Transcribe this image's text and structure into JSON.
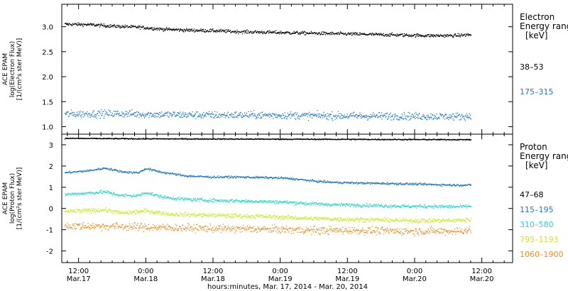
{
  "chart_data": [
    {
      "type": "scatter",
      "panel": "electron",
      "ylabel": [
        "ACE EPAM",
        "log(Electron Flux)",
        "[1/(cm²s ster MeV)]"
      ],
      "ylim": [
        0.85,
        3.45
      ],
      "yticks": [
        1.0,
        1.5,
        2.0,
        2.5,
        3.0
      ],
      "ytick_labels": [
        "1.0",
        "1.5",
        "2.0",
        "2.5",
        "3.0"
      ],
      "legend": {
        "title": [
          "Electron",
          "Energy ranges",
          "[keV]"
        ],
        "entries": [
          {
            "label": "38–53",
            "color": "#000000"
          },
          {
            "label": "175–315",
            "color": "#1f78c8"
          }
        ]
      },
      "series": [
        {
          "name": "38–53",
          "color": "#000000",
          "scatter": 0.04,
          "points": [
            [
              0,
              3.06
            ],
            [
              6,
              3.05
            ],
            [
              12,
              3.02
            ],
            [
              18,
              3.0
            ],
            [
              24,
              2.96
            ],
            [
              30,
              2.94
            ],
            [
              36,
              2.93
            ],
            [
              42,
              2.91
            ],
            [
              48,
              2.9
            ],
            [
              54,
              2.89
            ],
            [
              60,
              2.88
            ],
            [
              66,
              2.87
            ],
            [
              72,
              2.86
            ],
            [
              78,
              2.85
            ],
            [
              84,
              2.84
            ],
            [
              90,
              2.83
            ],
            [
              96,
              2.83
            ],
            [
              100,
              2.85
            ]
          ]
        },
        {
          "name": "175–315",
          "color": "#1f78c8",
          "scatter": 0.09,
          "points": [
            [
              0,
              1.26
            ],
            [
              12,
              1.27
            ],
            [
              24,
              1.25
            ],
            [
              36,
              1.24
            ],
            [
              48,
              1.24
            ],
            [
              60,
              1.23
            ],
            [
              72,
              1.22
            ],
            [
              84,
              1.22
            ],
            [
              96,
              1.21
            ],
            [
              100,
              1.22
            ]
          ]
        }
      ]
    },
    {
      "type": "scatter",
      "panel": "proton",
      "ylabel": [
        "ACE EPAM",
        "log(Proton Flux)",
        "[1/(cm²s ster MeV)]"
      ],
      "ylim": [
        -2.55,
        3.5
      ],
      "yticks": [
        -2,
        -1,
        0,
        1,
        2,
        3
      ],
      "ytick_labels": [
        "-2",
        "-1",
        "0",
        "1",
        "2",
        "3"
      ],
      "legend": {
        "title": [
          "Proton",
          "Energy ranges",
          "[keV]"
        ],
        "entries": [
          {
            "label": "47–68",
            "color": "#000000"
          },
          {
            "label": "115–195",
            "color": "#1f78c8"
          },
          {
            "label": "310–580",
            "color": "#22d8cc"
          },
          {
            "label": "795–1193",
            "color": "#c8e81e"
          },
          {
            "label": "1060–1900",
            "color": "#f08c1c"
          }
        ]
      },
      "series": [
        {
          "name": "47–68",
          "color": "#000000",
          "scatter": 0.03,
          "points": [
            [
              0,
              3.32
            ],
            [
              20,
              3.3
            ],
            [
              40,
              3.29
            ],
            [
              60,
              3.28
            ],
            [
              80,
              3.27
            ],
            [
              100,
              3.26
            ]
          ]
        },
        {
          "name": "115–195",
          "color": "#1f78c8",
          "scatter": 0.06,
          "points": [
            [
              0,
              1.7
            ],
            [
              6,
              1.8
            ],
            [
              10,
              1.92
            ],
            [
              14,
              1.75
            ],
            [
              18,
              1.7
            ],
            [
              20,
              1.9
            ],
            [
              24,
              1.72
            ],
            [
              30,
              1.55
            ],
            [
              36,
              1.5
            ],
            [
              42,
              1.5
            ],
            [
              48,
              1.48
            ],
            [
              54,
              1.45
            ],
            [
              58,
              1.38
            ],
            [
              62,
              1.3
            ],
            [
              66,
              1.25
            ],
            [
              72,
              1.22
            ],
            [
              78,
              1.2
            ],
            [
              84,
              1.18
            ],
            [
              90,
              1.15
            ],
            [
              96,
              1.12
            ],
            [
              100,
              1.12
            ]
          ]
        },
        {
          "name": "310–580",
          "color": "#22d8cc",
          "scatter": 0.1,
          "points": [
            [
              0,
              0.68
            ],
            [
              6,
              0.75
            ],
            [
              10,
              0.8
            ],
            [
              14,
              0.62
            ],
            [
              18,
              0.62
            ],
            [
              20,
              0.78
            ],
            [
              24,
              0.55
            ],
            [
              30,
              0.45
            ],
            [
              36,
              0.4
            ],
            [
              42,
              0.38
            ],
            [
              48,
              0.35
            ],
            [
              54,
              0.32
            ],
            [
              60,
              0.25
            ],
            [
              66,
              0.2
            ],
            [
              72,
              0.18
            ],
            [
              78,
              0.15
            ],
            [
              84,
              0.12
            ],
            [
              90,
              0.12
            ],
            [
              96,
              0.1
            ],
            [
              100,
              0.12
            ]
          ]
        },
        {
          "name": "795–1193",
          "color": "#c8e81e",
          "scatter": 0.12,
          "points": [
            [
              0,
              -0.12
            ],
            [
              10,
              -0.05
            ],
            [
              14,
              -0.2
            ],
            [
              20,
              -0.1
            ],
            [
              26,
              -0.25
            ],
            [
              36,
              -0.3
            ],
            [
              48,
              -0.35
            ],
            [
              60,
              -0.45
            ],
            [
              72,
              -0.5
            ],
            [
              84,
              -0.55
            ],
            [
              96,
              -0.55
            ],
            [
              100,
              -0.5
            ]
          ]
        },
        {
          "name": "1060–1900",
          "color": "#f08c1c",
          "scatter": 0.22,
          "points": [
            [
              0,
              -0.8
            ],
            [
              12,
              -0.82
            ],
            [
              24,
              -0.88
            ],
            [
              36,
              -0.92
            ],
            [
              48,
              -0.95
            ],
            [
              60,
              -1.0
            ],
            [
              72,
              -1.02
            ],
            [
              84,
              -1.05
            ],
            [
              96,
              -1.05
            ],
            [
              100,
              -1.0
            ]
          ]
        }
      ]
    }
  ],
  "x_axis": {
    "xlabel": "hours:minutes, Mar. 17, 2014 - Mar. 20, 2014",
    "ticks": [
      {
        "hour": 12,
        "time": "12:00",
        "date": "Mar.17"
      },
      {
        "hour": 24,
        "time": "0:00",
        "date": "Mar.18"
      },
      {
        "hour": 36,
        "time": "12:00",
        "date": "Mar.18"
      },
      {
        "hour": 48,
        "time": "0:00",
        "date": "Mar.19"
      },
      {
        "hour": 60,
        "time": "12:00",
        "date": "Mar.19"
      },
      {
        "hour": 72,
        "time": "0:00",
        "date": "Mar.20"
      },
      {
        "hour": 84,
        "time": "12:00",
        "date": "Mar.20"
      }
    ],
    "xlim_hours": [
      9,
      89.5
    ],
    "data_start_hour": 9.5,
    "data_end_hour": 82
  }
}
